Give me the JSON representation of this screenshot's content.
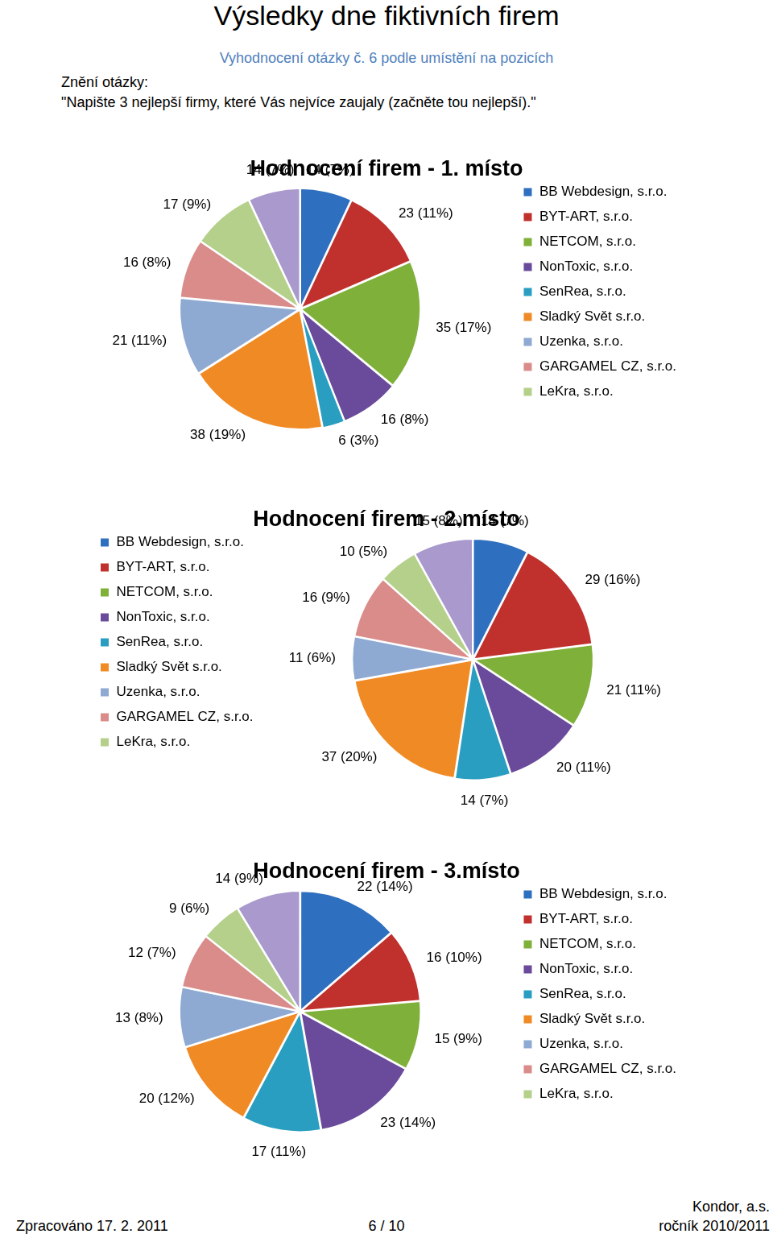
{
  "page": {
    "title": "Výsledky dne fiktivních firem",
    "subtitle": "Vyhodnocení otázky č. 6 podle umístění na pozicích",
    "question_label": "Znění otázky:",
    "question": "\"Napište 3 nejlepší firmy, které Vás nejvíce zaujaly (začněte tou nejlepší).\"",
    "footer_left": "Zpracováno 17. 2. 2011",
    "footer_center": "6 / 10",
    "footer_right": [
      "Kondor, a.s.",
      "ročník 2010/2011"
    ]
  },
  "chart_data": [
    {
      "type": "pie",
      "title": "Hodnocení firem - 1. místo",
      "categories": [
        "BB Webdesign, s.r.o.",
        "BYT-ART, s.r.o.",
        "NETCOM, s.r.o.",
        "NonToxic, s.r.o.",
        "SenRea, s.r.o.",
        "Sladký Svět s.r.o.",
        "Uzenka, s.r.o.",
        "GARGAMEL CZ, s.r.o.",
        "LeKra, s.r.o.",
        null
      ],
      "values": [
        14,
        23,
        35,
        16,
        6,
        38,
        21,
        16,
        17,
        14
      ],
      "value_labels": [
        "14 (7%)",
        "23 (11%)",
        "35 (17%)",
        "16 (8%)",
        "6 (3%)",
        "38 (19%)",
        "21 (11%)",
        "16 (8%)",
        "17 (9%)",
        "14 (7%)"
      ],
      "colors": [
        "#2E6FBF",
        "#C0312D",
        "#7FB03A",
        "#6A4A9A",
        "#2A9EC0",
        "#F08A24",
        "#8EA9D2",
        "#D98C8A",
        "#B5D08A",
        "#A999CC"
      ],
      "legend": "right",
      "data_labels": true
    },
    {
      "type": "pie",
      "title": "Hodnocení firem - 2.místo",
      "categories": [
        "BB Webdesign, s.r.o.",
        "BYT-ART, s.r.o.",
        "NETCOM, s.r.o.",
        "NonToxic, s.r.o.",
        "SenRea, s.r.o.",
        "Sladký Svět s.r.o.",
        "Uzenka, s.r.o.",
        "GARGAMEL CZ, s.r.o.",
        "LeKra, s.r.o.",
        null
      ],
      "values": [
        14,
        29,
        21,
        20,
        14,
        37,
        11,
        16,
        10,
        15
      ],
      "value_labels": [
        "14 (7%)",
        "29 (16%)",
        "21 (11%)",
        "20 (11%)",
        "14 (7%)",
        "37 (20%)",
        "11 (6%)",
        "16 (9%)",
        "10 (5%)",
        "15 (8%)"
      ],
      "colors": [
        "#2E6FBF",
        "#C0312D",
        "#7FB03A",
        "#6A4A9A",
        "#2A9EC0",
        "#F08A24",
        "#8EA9D2",
        "#D98C8A",
        "#B5D08A",
        "#A999CC"
      ],
      "legend": "left",
      "data_labels": true
    },
    {
      "type": "pie",
      "title": "Hodnocení firem - 3.místo",
      "categories": [
        "BB Webdesign, s.r.o.",
        "BYT-ART, s.r.o.",
        "NETCOM, s.r.o.",
        "NonToxic, s.r.o.",
        "SenRea, s.r.o.",
        "Sladký Svět s.r.o.",
        "Uzenka, s.r.o.",
        "GARGAMEL CZ, s.r.o.",
        "LeKra, s.r.o.",
        null
      ],
      "values": [
        22,
        16,
        15,
        23,
        17,
        20,
        13,
        12,
        9,
        14
      ],
      "value_labels": [
        "22 (14%)",
        "16 (10%)",
        "15 (9%)",
        "23 (14%)",
        "17 (11%)",
        "20 (12%)",
        "13 (8%)",
        "12 (7%)",
        "9 (6%)",
        "14 (9%)"
      ],
      "colors": [
        "#2E6FBF",
        "#C0312D",
        "#7FB03A",
        "#6A4A9A",
        "#2A9EC0",
        "#F08A24",
        "#8EA9D2",
        "#D98C8A",
        "#B5D08A",
        "#A999CC"
      ],
      "legend": "right",
      "data_labels": true
    }
  ]
}
